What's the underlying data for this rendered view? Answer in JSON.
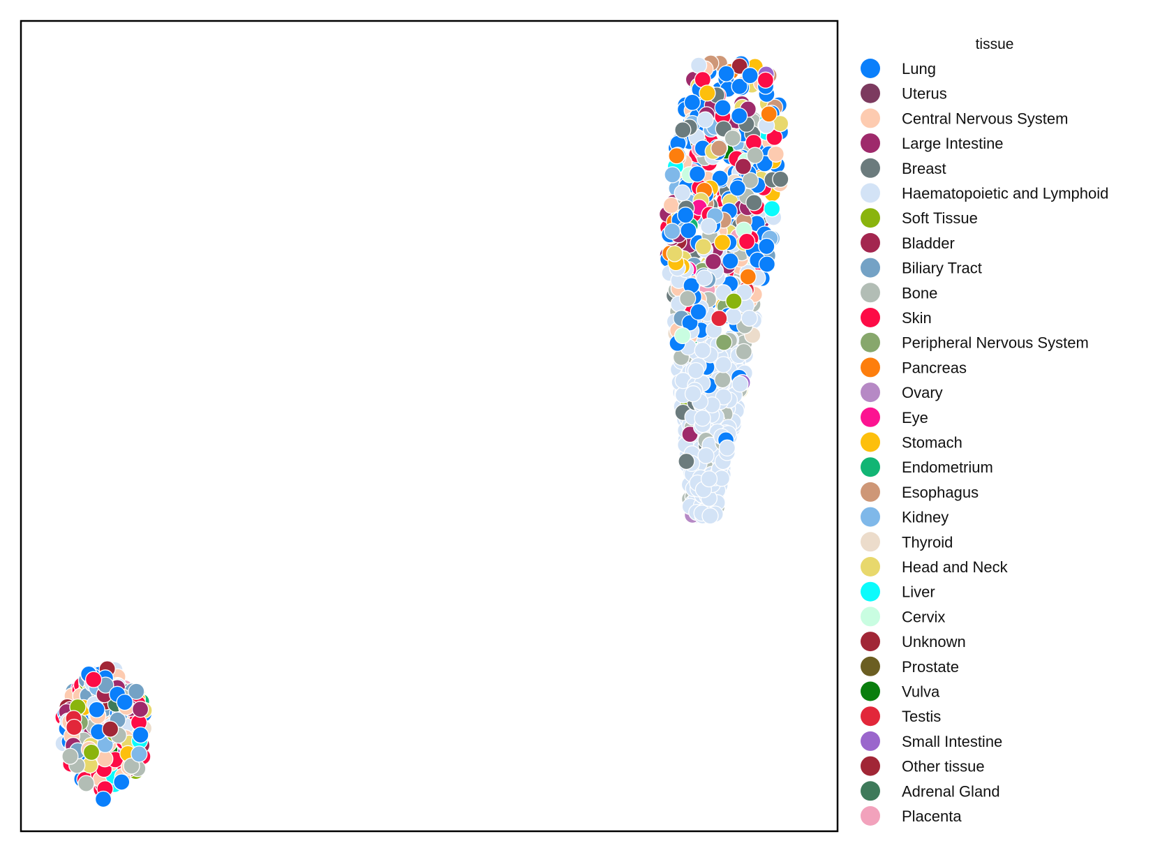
{
  "chart_data": {
    "type": "scatter",
    "title": "",
    "xlabel": "",
    "ylabel": "",
    "axes_ticks": false,
    "grid": false,
    "legend": {
      "title": "tissue",
      "placement": "outside-right",
      "entries": [
        {
          "name": "Lung",
          "color": "#0a7ffb"
        },
        {
          "name": "Uterus",
          "color": "#7c3a5f"
        },
        {
          "name": "Central Nervous System",
          "color": "#fdcbb0"
        },
        {
          "name": "Large Intestine",
          "color": "#9e2a6b"
        },
        {
          "name": "Breast",
          "color": "#6b7b7d"
        },
        {
          "name": "Haematopoietic and Lymphoid",
          "color": "#d3e3f6"
        },
        {
          "name": "Soft Tissue",
          "color": "#8ab40d"
        },
        {
          "name": "Bladder",
          "color": "#a3264f"
        },
        {
          "name": "Biliary Tract",
          "color": "#74a2c5"
        },
        {
          "name": "Bone",
          "color": "#b2bdb5"
        },
        {
          "name": "Skin",
          "color": "#fd0c46"
        },
        {
          "name": "Peripheral Nervous System",
          "color": "#87a76c"
        },
        {
          "name": "Pancreas",
          "color": "#fd7e0d"
        },
        {
          "name": "Ovary",
          "color": "#b689c5"
        },
        {
          "name": "Eye",
          "color": "#fc1391"
        },
        {
          "name": "Stomach",
          "color": "#fdbf0c"
        },
        {
          "name": "Endometrium",
          "color": "#12b574"
        },
        {
          "name": "Esophagus",
          "color": "#ce9777"
        },
        {
          "name": "Kidney",
          "color": "#7fb8e9"
        },
        {
          "name": "Thyroid",
          "color": "#ecdccb"
        },
        {
          "name": "Head and Neck",
          "color": "#e8d86c"
        },
        {
          "name": "Liver",
          "color": "#0bfbfc"
        },
        {
          "name": "Cervix",
          "color": "#c9fde1"
        },
        {
          "name": "Unknown",
          "color": "#a12636"
        },
        {
          "name": "Prostate",
          "color": "#6b5e22"
        },
        {
          "name": "Vulva",
          "color": "#097e0d"
        },
        {
          "name": "Testis",
          "color": "#e2273a"
        },
        {
          "name": "Small Intestine",
          "color": "#9a66cc"
        },
        {
          "name": "Other tissue",
          "color": "#a12636"
        },
        {
          "name": "Adrenal Gland",
          "color": "#3e7a5a"
        },
        {
          "name": "Placenta",
          "color": "#f2a2bc"
        }
      ]
    },
    "clusters": [
      {
        "approx_x_range": [
          0.79,
          0.96
        ],
        "approx_y_range": [
          0.39,
          0.97
        ],
        "note_tissues_dominant": [
          "Lung",
          "Haematopoietic and Lymphoid",
          "Skin",
          "Large Intestine"
        ]
      },
      {
        "approx_x_range": [
          0.04,
          0.17
        ],
        "approx_y_range": [
          0.045,
          0.215
        ],
        "note_tissues_dominant": [
          "Lung",
          "Central Nervous System",
          "Large Intestine",
          "Haematopoietic and Lymphoid"
        ]
      }
    ]
  }
}
